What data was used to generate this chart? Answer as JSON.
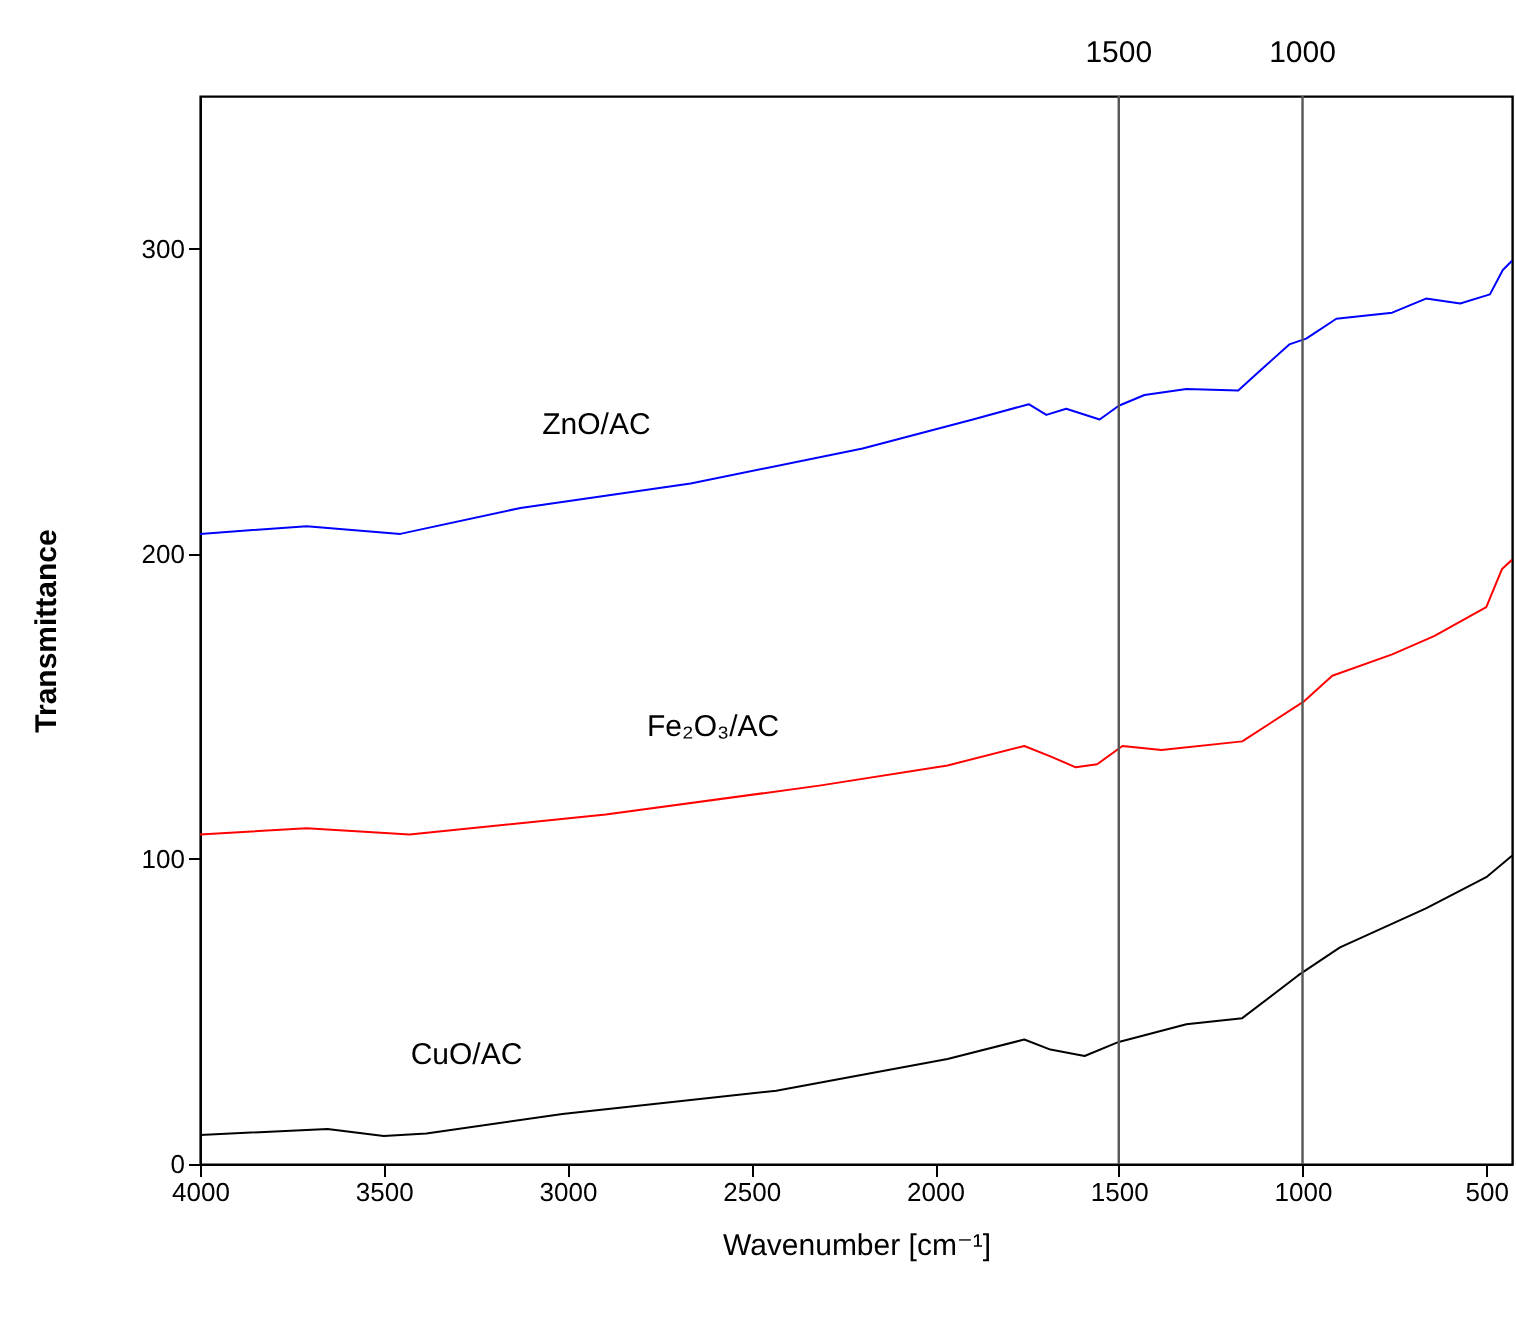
{
  "chart_data": {
    "type": "line",
    "xlabel": "Wavenumber [cm⁻¹]",
    "ylabel": "Transmittance",
    "xlim": [
      4000,
      430
    ],
    "ylim": [
      0,
      350
    ],
    "xticks": [
      4000,
      3500,
      3000,
      2500,
      2000,
      1500,
      1000,
      500
    ],
    "yticks": [
      0,
      100,
      200,
      300
    ],
    "grid": false,
    "legend": false,
    "marker": "none",
    "line_style": "solid",
    "ref_lines": [
      {
        "axis": "x",
        "value": 1500,
        "label": "1500",
        "color": "#555555"
      },
      {
        "axis": "x",
        "value": 1000,
        "label": "1000",
        "color": "#555555"
      }
    ],
    "series": [
      {
        "name": "ZnO/AC",
        "color": "#0000ff",
        "x": [
          4000,
          3710,
          3455,
          3128,
          2665,
          2197,
          1897,
          1745,
          1697,
          1643,
          1552,
          1500,
          1430,
          1316,
          1175,
          1106,
          1036,
          990,
          908,
          756,
          664,
          571,
          490,
          455,
          430
        ],
        "values": [
          206.5,
          209,
          206.5,
          215,
          223,
          234.5,
          244,
          249,
          245.5,
          247.5,
          244,
          248.5,
          252,
          254,
          253.5,
          261,
          268.6,
          270.5,
          277,
          279,
          283.6,
          282,
          285,
          293,
          296
        ]
      },
      {
        "name": "Fe₂O₃/AC",
        "color": "#ff0000",
        "x": [
          4000,
          3710,
          3430,
          2896,
          2315,
          1966,
          1757,
          1686,
          1617,
          1559,
          1490,
          1384,
          1164,
          995,
          919,
          756,
          642,
          500,
          457,
          430
        ],
        "values": [
          108,
          110,
          108,
          114.5,
          124,
          130.6,
          137,
          133.6,
          130,
          131,
          137,
          135.7,
          138.5,
          151.7,
          160,
          167,
          173,
          182.5,
          195,
          198
        ]
      },
      {
        "name": "CuO/AC",
        "color": "#000000",
        "x": [
          4000,
          3653,
          3500,
          3384,
          3014,
          2432,
          1966,
          1757,
          1686,
          1593,
          1500,
          1316,
          1164,
          1012,
          898,
          664,
          500,
          430
        ],
        "values": [
          9.5,
          11.5,
          9.2,
          10,
          16.4,
          24,
          34.4,
          40.8,
          37.5,
          35.4,
          40,
          45.8,
          47.8,
          61.8,
          71,
          83.8,
          94,
          101
        ]
      }
    ]
  }
}
